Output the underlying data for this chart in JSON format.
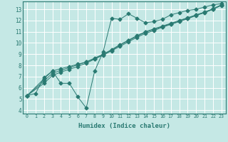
{
  "xlabel": "Humidex (Indice chaleur)",
  "ylabel": "",
  "bg_color": "#c5e8e5",
  "grid_color": "#b0d8d5",
  "line_color": "#2a7a72",
  "xlim": [
    -0.5,
    23.5
  ],
  "ylim": [
    3.7,
    13.7
  ],
  "xticks": [
    0,
    1,
    2,
    3,
    4,
    5,
    6,
    7,
    8,
    9,
    10,
    11,
    12,
    13,
    14,
    15,
    16,
    17,
    18,
    19,
    20,
    21,
    22,
    23
  ],
  "yticks": [
    4,
    5,
    6,
    7,
    8,
    9,
    10,
    11,
    12,
    13
  ],
  "line1_x": [
    0,
    1,
    2,
    3,
    4,
    5,
    6,
    7,
    8,
    9,
    10,
    11,
    12,
    13,
    14,
    15,
    16,
    17,
    18,
    19,
    20,
    21,
    22,
    23
  ],
  "line1_y": [
    5.3,
    5.5,
    6.9,
    7.5,
    6.4,
    6.4,
    5.2,
    4.2,
    7.5,
    9.2,
    12.2,
    12.1,
    12.6,
    12.2,
    11.8,
    11.9,
    12.1,
    12.5,
    12.7,
    12.9,
    13.0,
    13.2,
    13.4,
    13.5
  ],
  "line2_x": [
    0,
    2,
    3,
    4,
    5,
    6,
    7,
    8,
    9,
    10,
    11,
    12,
    13,
    14,
    15,
    16,
    17,
    18,
    19,
    20,
    21,
    22,
    23
  ],
  "line2_y": [
    5.3,
    6.8,
    7.5,
    7.7,
    7.9,
    8.1,
    8.3,
    8.6,
    8.9,
    9.3,
    9.7,
    10.1,
    10.5,
    10.85,
    11.1,
    11.4,
    11.65,
    11.9,
    12.15,
    12.45,
    12.7,
    13.0,
    13.35
  ],
  "line3_x": [
    0,
    2,
    3,
    4,
    5,
    6,
    7,
    8,
    9,
    10,
    11,
    12,
    13,
    14,
    15,
    16,
    17,
    18,
    19,
    20,
    21,
    22,
    23
  ],
  "line3_y": [
    5.3,
    6.6,
    7.3,
    7.55,
    7.8,
    8.05,
    8.3,
    8.65,
    9.0,
    9.4,
    9.85,
    10.25,
    10.65,
    11.0,
    11.25,
    11.5,
    11.75,
    12.0,
    12.25,
    12.5,
    12.75,
    13.05,
    13.4
  ],
  "line4_x": [
    0,
    2,
    3,
    4,
    5,
    6,
    7,
    8,
    9,
    10,
    11,
    12,
    13,
    14,
    15,
    16,
    17,
    18,
    19,
    20,
    21,
    22,
    23
  ],
  "line4_y": [
    5.3,
    6.4,
    7.1,
    7.4,
    7.65,
    7.9,
    8.2,
    8.55,
    8.95,
    9.35,
    9.8,
    10.2,
    10.6,
    10.95,
    11.2,
    11.45,
    11.7,
    11.95,
    12.2,
    12.48,
    12.72,
    13.02,
    13.38
  ]
}
